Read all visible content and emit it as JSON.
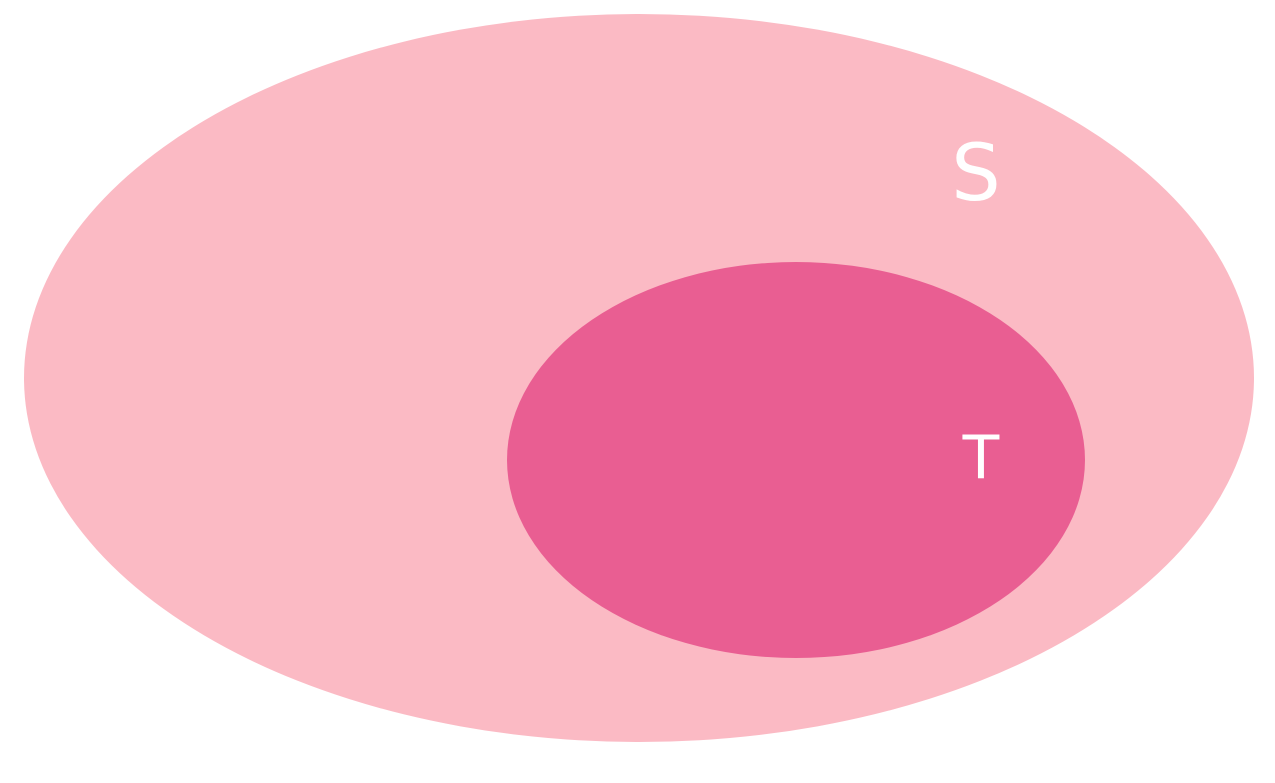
{
  "colors": {
    "outer_set": "#fbbac4",
    "inner_set": "#e95e92",
    "label": "#ffffff",
    "background": "#ffffff"
  },
  "sets": {
    "outer": {
      "label": "S"
    },
    "inner": {
      "label": "T"
    }
  }
}
